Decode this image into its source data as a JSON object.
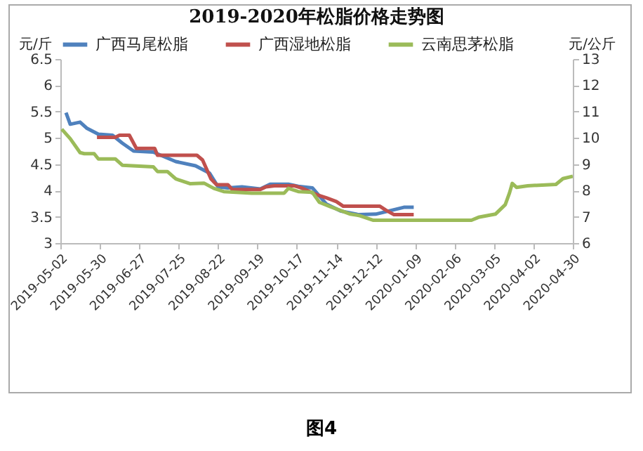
{
  "chart_data": {
    "type": "line",
    "title": "2019-2020年松脂价格走势图",
    "ylabel": "元/斤",
    "y2label": "元/公斤",
    "annotations": [
      "图4"
    ],
    "legend": "top",
    "xlim": [
      "2019-05-02",
      "2020-04-30"
    ],
    "xticks": [
      "2019-05-02",
      "2019-05-30",
      "2019-06-27",
      "2019-07-25",
      "2019-08-22",
      "2019-09-19",
      "2019-10-17",
      "2019-11-14",
      "2019-12-12",
      "2020-01-09",
      "2020-02-06",
      "2020-03-05",
      "2020-04-02",
      "2020-04-30"
    ],
    "ylim": [
      3,
      6.5
    ],
    "yticks": [
      3,
      3.5,
      4,
      4.5,
      5,
      5.5,
      6,
      6.5
    ],
    "y2lim": [
      6,
      13
    ],
    "y2ticks": [
      6,
      7,
      8,
      9,
      10,
      11,
      12,
      13
    ],
    "series": [
      {
        "name": "广西马尾松脂",
        "color": "#4f81bd",
        "x": [
          "2019-05-06",
          "2019-05-09",
          "2019-05-16",
          "2019-05-21",
          "2019-05-29",
          "2019-06-08",
          "2019-06-15",
          "2019-06-23",
          "2019-07-07",
          "2019-07-23",
          "2019-08-06",
          "2019-08-16",
          "2019-08-22",
          "2019-08-29",
          "2019-09-08",
          "2019-09-21",
          "2019-09-28",
          "2019-10-11",
          "2019-10-18",
          "2019-10-28",
          "2019-11-07",
          "2019-11-17",
          "2019-11-30",
          "2019-12-12",
          "2020-01-01",
          "2020-01-08"
        ],
        "values": [
          5.48,
          5.26,
          5.3,
          5.18,
          5.07,
          5.05,
          4.9,
          4.75,
          4.73,
          4.55,
          4.47,
          4.33,
          4.07,
          4.05,
          4.07,
          4.03,
          4.12,
          4.12,
          4.08,
          4.05,
          3.74,
          3.61,
          3.54,
          3.55,
          3.68,
          3.68
        ]
      },
      {
        "name": "广西湿地松脂",
        "color": "#c0504d",
        "x": [
          "2019-05-28",
          "2019-06-10",
          "2019-06-13",
          "2019-06-20",
          "2019-06-25",
          "2019-07-08",
          "2019-07-10",
          "2019-08-07",
          "2019-08-11",
          "2019-08-14",
          "2019-08-17",
          "2019-08-21",
          "2019-08-29",
          "2019-09-01",
          "2019-09-21",
          "2019-09-25",
          "2019-10-01",
          "2019-10-15",
          "2019-10-20",
          "2019-10-31",
          "2019-11-07",
          "2019-11-14",
          "2019-11-19",
          "2019-12-15",
          "2019-12-19",
          "2019-12-25",
          "2020-01-08"
        ],
        "values": [
          5.01,
          5.01,
          5.05,
          5.05,
          4.8,
          4.8,
          4.67,
          4.67,
          4.58,
          4.4,
          4.22,
          4.11,
          4.11,
          4.02,
          4.02,
          4.07,
          4.09,
          4.09,
          4.05,
          3.92,
          3.86,
          3.79,
          3.7,
          3.7,
          3.63,
          3.54,
          3.54
        ]
      },
      {
        "name": "云南思茅松脂",
        "color": "#9bbb59",
        "axis": "y2",
        "x": [
          "2019-05-03",
          "2019-05-09",
          "2019-05-16",
          "2019-05-19",
          "2019-05-26",
          "2019-05-29",
          "2019-06-10",
          "2019-06-15",
          "2019-07-07",
          "2019-07-10",
          "2019-07-17",
          "2019-07-23",
          "2019-08-02",
          "2019-08-12",
          "2019-08-19",
          "2019-08-26",
          "2019-09-15",
          "2019-10-08",
          "2019-10-11",
          "2019-10-18",
          "2019-10-28",
          "2019-11-02",
          "2019-11-10",
          "2019-11-24",
          "2019-11-30",
          "2019-12-10",
          "2020-02-18",
          "2020-02-23",
          "2020-03-06",
          "2020-03-13",
          "2020-03-16",
          "2020-03-18",
          "2020-03-21",
          "2020-03-29",
          "2020-04-18",
          "2020-04-23",
          "2020-04-30"
        ],
        "values": [
          10.33,
          9.97,
          9.44,
          9.4,
          9.4,
          9.2,
          9.2,
          8.96,
          8.9,
          8.72,
          8.72,
          8.44,
          8.26,
          8.28,
          8.08,
          7.96,
          7.9,
          7.9,
          8.08,
          7.96,
          7.93,
          7.55,
          7.38,
          7.1,
          7.05,
          6.87,
          6.87,
          6.98,
          7.1,
          7.46,
          7.9,
          8.27,
          8.12,
          8.18,
          8.23,
          8.45,
          8.54
        ]
      }
    ]
  }
}
